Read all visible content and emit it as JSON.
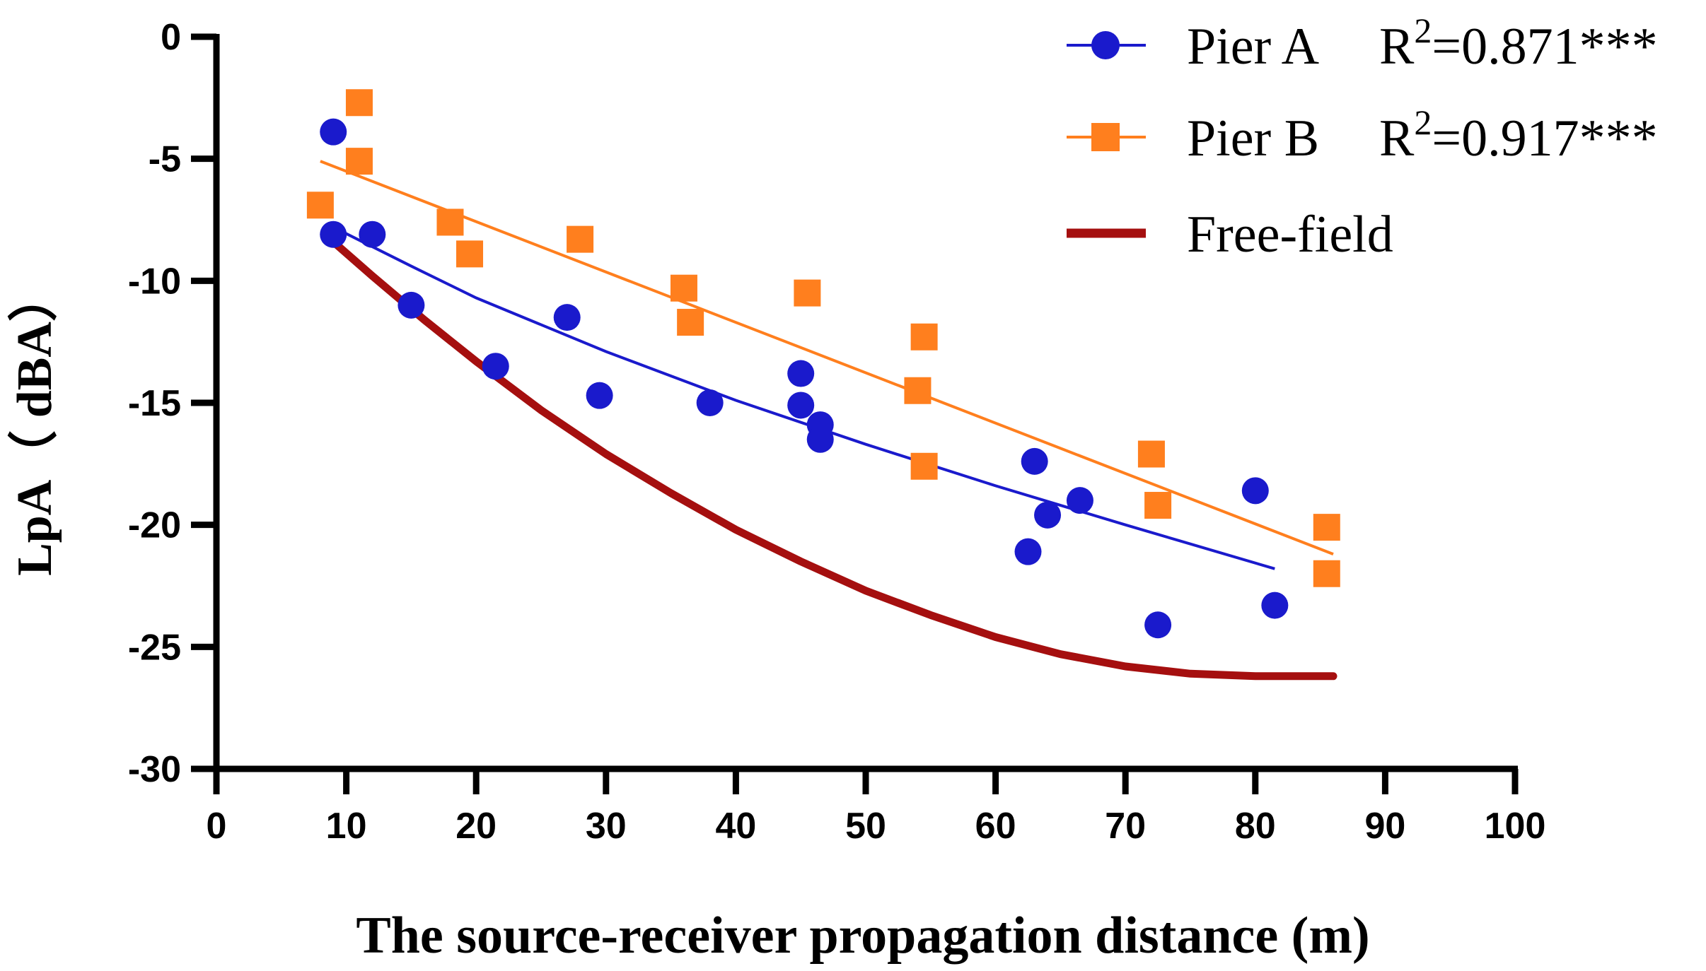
{
  "chart_data": {
    "type": "scatter",
    "xlabel": "The source-receiver propagation distance (m)",
    "ylabel": "LpA（ dBA）",
    "xlim": [
      0,
      100
    ],
    "ylim": [
      -30,
      0
    ],
    "xticks": [
      0,
      10,
      20,
      30,
      40,
      50,
      60,
      70,
      80,
      90,
      100
    ],
    "yticks": [
      0,
      -5,
      -10,
      -15,
      -20,
      -25,
      -30
    ],
    "legend_position": "top-right",
    "series": [
      {
        "name": "Pier A",
        "r2_label": "R",
        "r2_sup": "2",
        "r2_value": "=0.871***",
        "color": "#1a1acc",
        "marker": "circle",
        "points": [
          [
            9,
            -3.9
          ],
          [
            9,
            -8.1
          ],
          [
            12,
            -8.1
          ],
          [
            15,
            -11
          ],
          [
            21.5,
            -13.5
          ],
          [
            27,
            -11.5
          ],
          [
            29.5,
            -14.7
          ],
          [
            38,
            -15
          ],
          [
            45,
            -13.8
          ],
          [
            45,
            -15.1
          ],
          [
            46.5,
            -15.9
          ],
          [
            46.5,
            -16.5
          ],
          [
            62.5,
            -21.1
          ],
          [
            63,
            -17.4
          ],
          [
            64,
            -19.6
          ],
          [
            66.5,
            -19
          ],
          [
            72.5,
            -24.1
          ],
          [
            80,
            -18.6
          ],
          [
            81.5,
            -23.3
          ]
        ],
        "fit_line": [
          [
            9,
            -7.8
          ],
          [
            15,
            -9.4
          ],
          [
            20,
            -10.7
          ],
          [
            30,
            -12.9
          ],
          [
            40,
            -14.9
          ],
          [
            50,
            -16.7
          ],
          [
            60,
            -18.4
          ],
          [
            70,
            -20.0
          ],
          [
            81.5,
            -21.8
          ]
        ]
      },
      {
        "name": "Pier B",
        "r2_label": "R",
        "r2_sup": "2",
        "r2_value": "=0.917***",
        "color": "#ff7f1e",
        "marker": "square",
        "points": [
          [
            8,
            -6.9
          ],
          [
            11,
            -2.7
          ],
          [
            11,
            -5.1
          ],
          [
            18,
            -7.6
          ],
          [
            19.5,
            -8.9
          ],
          [
            28,
            -8.3
          ],
          [
            36,
            -10.3
          ],
          [
            36.5,
            -11.7
          ],
          [
            45.5,
            -10.5
          ],
          [
            54,
            -14.5
          ],
          [
            54.5,
            -12.3
          ],
          [
            54.5,
            -17.6
          ],
          [
            72,
            -17.1
          ],
          [
            72.5,
            -19.2
          ],
          [
            85.5,
            -20.1
          ],
          [
            85.5,
            -22
          ]
        ],
        "fit_line": [
          [
            8,
            -5.1
          ],
          [
            86,
            -21.2
          ]
        ]
      },
      {
        "name": "Free-field",
        "color": "#a50f0f",
        "marker": "line",
        "curve": [
          [
            9,
            -8.4
          ],
          [
            12,
            -9.8
          ],
          [
            16,
            -11.6
          ],
          [
            20,
            -13.3
          ],
          [
            25,
            -15.3
          ],
          [
            30,
            -17.1
          ],
          [
            35,
            -18.7
          ],
          [
            40,
            -20.2
          ],
          [
            45,
            -21.5
          ],
          [
            50,
            -22.7
          ],
          [
            55,
            -23.7
          ],
          [
            60,
            -24.6
          ],
          [
            65,
            -25.3
          ],
          [
            70,
            -25.8
          ],
          [
            75,
            -26.1
          ],
          [
            80,
            -26.2
          ],
          [
            86,
            -26.2
          ]
        ]
      }
    ]
  }
}
